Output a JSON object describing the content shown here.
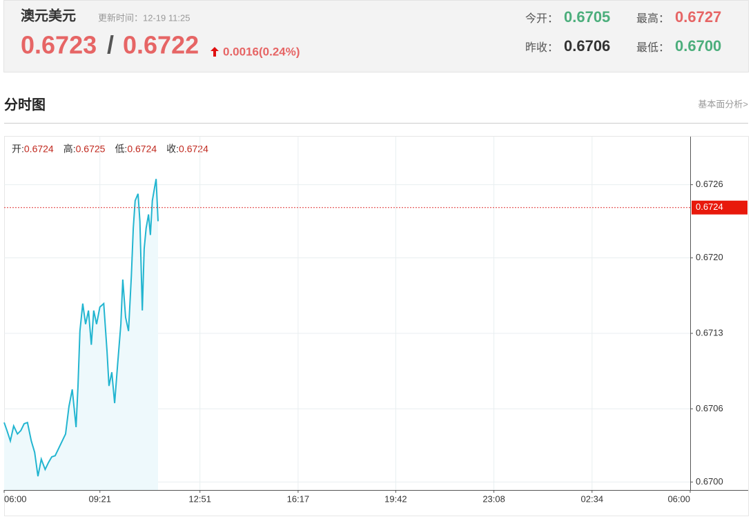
{
  "header": {
    "name": "澳元美元",
    "updated": "更新时间：12-19 11:25",
    "bid": "0.6723",
    "sep": "/",
    "ask": "0.6722",
    "change": "0.0016(0.24%)",
    "stats": [
      {
        "label": "今开：",
        "value": "0.6705"
      },
      {
        "label": "最高：",
        "value": "0.6727"
      },
      {
        "label": "昨收：",
        "value": "0.6706"
      },
      {
        "label": "最低：",
        "value": "0.6700"
      }
    ]
  },
  "section": {
    "title": "分时图",
    "link": "基本面分析>"
  },
  "chart_data": {
    "type": "line",
    "color": "#22b5d0",
    "grid": true,
    "info": [
      {
        "label": "开:",
        "value": "0.6724"
      },
      {
        "label": "高:",
        "value": "0.6725"
      },
      {
        "label": "低:",
        "value": "0.6724"
      },
      {
        "label": "收:",
        "value": "0.6724"
      }
    ],
    "xlim": [
      0,
      1440
    ],
    "xticks": [
      {
        "value": 0,
        "label": "06:00"
      },
      {
        "value": 201,
        "label": "09:21"
      },
      {
        "value": 411,
        "label": "12:51"
      },
      {
        "value": 617,
        "label": "16:17"
      },
      {
        "value": 822,
        "label": "19:42"
      },
      {
        "value": 1028,
        "label": "23:08"
      },
      {
        "value": 1234,
        "label": "02:34"
      },
      {
        "value": 1440,
        "label": "06:00"
      }
    ],
    "ylim": [
      0.66993,
      0.67302
    ],
    "yticks": [
      {
        "value": 0.67,
        "label": "0.6700"
      },
      {
        "value": 0.67064,
        "label": "0.6706"
      },
      0.6713,
      {
        "value": 0.67196,
        "label": "0.6720"
      },
      0.6726
    ],
    "last_price": 0.6724,
    "x": [
      0,
      6,
      13,
      20,
      28,
      35,
      42,
      49,
      57,
      64,
      71,
      78,
      86,
      93,
      100,
      107,
      114,
      122,
      129,
      136,
      143,
      151,
      155,
      159,
      165,
      171,
      177,
      183,
      188,
      194,
      201,
      209,
      216,
      220,
      226,
      232,
      238,
      245,
      249,
      255,
      261,
      267,
      271,
      275,
      281,
      285,
      290,
      294,
      298,
      303,
      307,
      311,
      316,
      319,
      323
    ],
    "values": [
      0.67052,
      0.67045,
      0.67036,
      0.67049,
      0.67042,
      0.67045,
      0.67051,
      0.67052,
      0.67036,
      0.67026,
      0.67005,
      0.6702,
      0.67011,
      0.67017,
      0.67022,
      0.67023,
      0.67029,
      0.67036,
      0.67042,
      0.67066,
      0.67081,
      0.67048,
      0.67084,
      0.67132,
      0.67156,
      0.67138,
      0.6715,
      0.6712,
      0.6715,
      0.67138,
      0.67153,
      0.67156,
      0.67114,
      0.67084,
      0.67096,
      0.67069,
      0.67102,
      0.67138,
      0.67177,
      0.67144,
      0.67132,
      0.6718,
      0.67222,
      0.67246,
      0.67252,
      0.67228,
      0.6715,
      0.67204,
      0.67222,
      0.67234,
      0.67216,
      0.67246,
      0.67258,
      0.67265,
      0.67228
    ]
  }
}
